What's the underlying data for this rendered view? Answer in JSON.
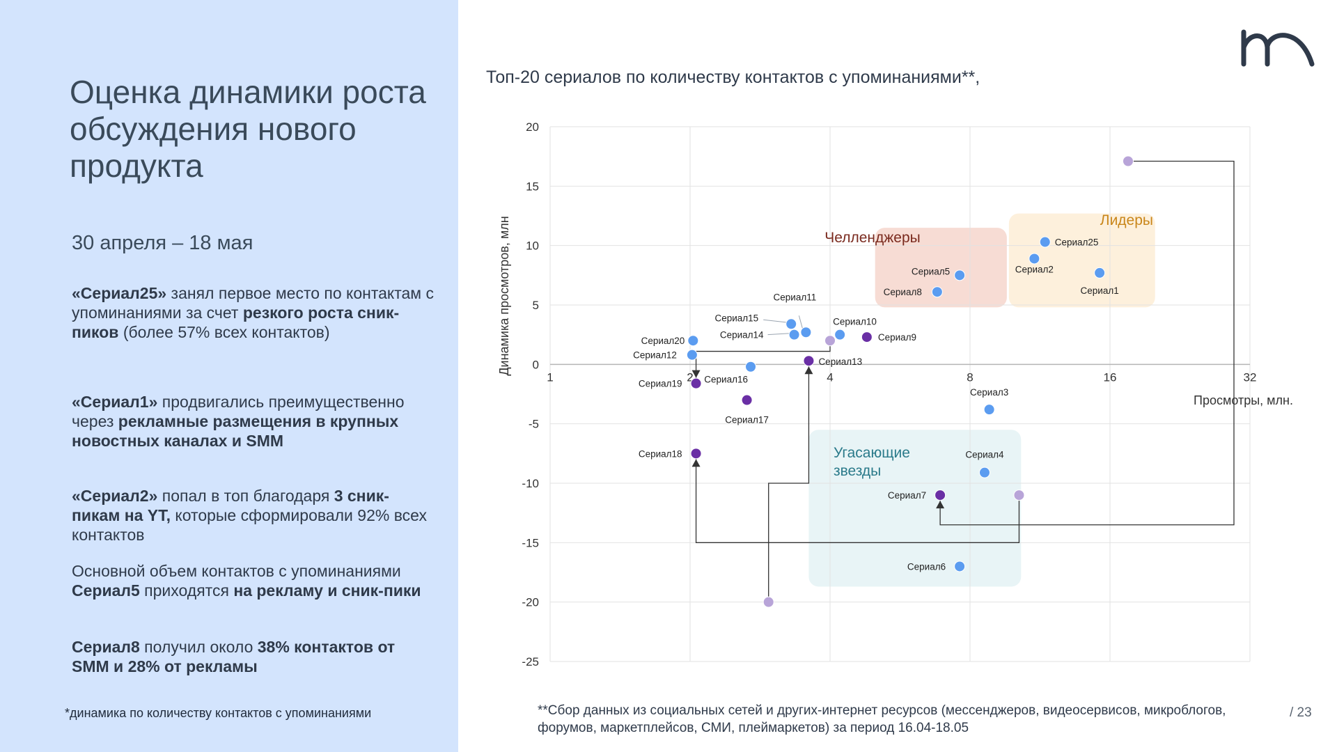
{
  "slide": {
    "title": "Оценка динамики роста обсуждения нового продукта",
    "period": "30 апреля – 18 мая",
    "paragraphs": [
      [
        {
          "t": "«Сериал25»",
          "b": true
        },
        {
          "t": " занял первое место по контактам с упоминаниями за счет ",
          "b": false
        },
        {
          "t": "резкого роста сник-пиков",
          "b": true
        },
        {
          "t": " (более 57% всех контактов)",
          "b": false
        }
      ],
      [
        {
          "t": "«Сериал1»",
          "b": true
        },
        {
          "t": " продвигались преимущественно через ",
          "b": false
        },
        {
          "t": "рекламные размещения в крупных новостных каналах и SMM",
          "b": true
        }
      ],
      [
        {
          "t": "«Сериал2»",
          "b": true
        },
        {
          "t": " попал в топ благодаря ",
          "b": false
        },
        {
          "t": "3 сник-пикам на YT,",
          "b": true
        },
        {
          "t": " которые сформировали 92% всех контактов",
          "b": false
        }
      ],
      [
        {
          "t": "Основной объем контактов с упоминаниями ",
          "b": false
        },
        {
          "t": "Сериал5",
          "b": true
        },
        {
          "t": " приходятся ",
          "b": false
        },
        {
          "t": "на рекламу и сник-пики",
          "b": true
        }
      ],
      [
        {
          "t": "Сериал8",
          "b": true
        },
        {
          "t": " получил около ",
          "b": false
        },
        {
          "t": "38% контактов",
          "b": true
        },
        {
          "t": " ",
          "b": false
        },
        {
          "t": "от SMM и 28% от рекламы",
          "b": true
        }
      ]
    ],
    "footnote_left": "*динамика по количеству контактов с упоминаниями",
    "footnote_right": "**Сбор данных из социальных сетей и других-интернет ресурсов (мессенджеров, видеосервисов, микроблогов, форумов, маркетплейсов, СМИ, плеймаркетов) за период 16.04-18.05",
    "page_number": "/ 23"
  },
  "chart_data": {
    "type": "scatter",
    "title": "Топ-20 сериалов по количеству контактов с упоминаниями**,",
    "xlabel": "Просмотры, млн.",
    "ylabel": "Динамика просмотров, млн",
    "x_scale": "log2",
    "xlim": [
      1,
      32
    ],
    "ylim": [
      -25,
      20
    ],
    "x_ticks": [
      "1",
      "2",
      "4",
      "8",
      "16",
      "32"
    ],
    "y_ticks": [
      "20",
      "15",
      "10",
      "5",
      "0",
      "-5",
      "-10",
      "-15",
      "-20",
      "-25"
    ],
    "grid": true,
    "colors": {
      "blue": "#5b9cf0",
      "purple": "#6a2fa5",
      "lilac": "#b8a4d8",
      "connector": "#333333"
    },
    "zones": [
      {
        "label": "Челленджеры",
        "fill": "#f7dcd4",
        "color": "#7a2a1e",
        "x": [
          5.0,
          9.6
        ],
        "y": [
          4.8,
          11.5
        ]
      },
      {
        "label": "Лидеры",
        "fill": "#fdf0dc",
        "color": "#c9861a",
        "x": [
          9.7,
          20.0
        ],
        "y": [
          4.8,
          12.7
        ]
      },
      {
        "label": "Угасающие звезды",
        "fill": "#e8f4f6",
        "color": "#2a7a8a",
        "x": [
          3.6,
          10.3
        ],
        "y": [
          -18.7,
          -5.5
        ]
      }
    ],
    "points": [
      {
        "name": "Сериал25",
        "x": 11.6,
        "y": 10.3,
        "color": "blue"
      },
      {
        "name": "Сериал2",
        "x": 11.0,
        "y": 8.9,
        "color": "blue"
      },
      {
        "name": "Сериал1",
        "x": 15.2,
        "y": 7.7,
        "color": "blue"
      },
      {
        "name": "Сериал5",
        "x": 7.6,
        "y": 7.5,
        "color": "blue"
      },
      {
        "name": "Сериал8",
        "x": 6.8,
        "y": 6.1,
        "color": "blue"
      },
      {
        "name": "Сериал11",
        "x": 3.55,
        "y": 2.7,
        "color": "blue"
      },
      {
        "name": "Сериал10",
        "x": 4.2,
        "y": 2.5,
        "color": "blue"
      },
      {
        "name": "Сериал15",
        "x": 3.3,
        "y": 3.4,
        "color": "blue"
      },
      {
        "name": "Сериал14",
        "x": 3.35,
        "y": 2.5,
        "color": "blue"
      },
      {
        "name": "Сериал9",
        "x": 4.8,
        "y": 2.3,
        "color": "purple"
      },
      {
        "name": "Сериал20",
        "x": 2.03,
        "y": 2.0,
        "color": "blue"
      },
      {
        "name": "Сериал12",
        "x": 2.02,
        "y": 0.8,
        "color": "blue"
      },
      {
        "name": "Сериал13",
        "x": 3.6,
        "y": 0.3,
        "color": "purple"
      },
      {
        "name": "Сериал16",
        "x": 2.7,
        "y": -0.2,
        "color": "blue"
      },
      {
        "name": "Сериал19",
        "x": 2.06,
        "y": -1.6,
        "color": "purple"
      },
      {
        "name": "Сериал17",
        "x": 2.65,
        "y": -3.0,
        "color": "purple"
      },
      {
        "name": "Сериал3",
        "x": 8.8,
        "y": -3.8,
        "color": "blue"
      },
      {
        "name": "Сериал18",
        "x": 2.06,
        "y": -7.5,
        "color": "purple"
      },
      {
        "name": "Сериал4",
        "x": 8.6,
        "y": -9.1,
        "color": "blue"
      },
      {
        "name": "Сериал7",
        "x": 6.9,
        "y": -11.0,
        "color": "purple"
      },
      {
        "name": "Сериал6",
        "x": 7.6,
        "y": -17.0,
        "color": "blue"
      },
      {
        "name": "",
        "x": 17.5,
        "y": 17.1,
        "color": "lilac"
      },
      {
        "name": "",
        "x": 4.0,
        "y": 2.0,
        "color": "lilac"
      },
      {
        "name": "",
        "x": 10.2,
        "y": -11.0,
        "color": "lilac"
      },
      {
        "name": "",
        "x": 2.95,
        "y": -20.0,
        "color": "lilac"
      }
    ]
  }
}
